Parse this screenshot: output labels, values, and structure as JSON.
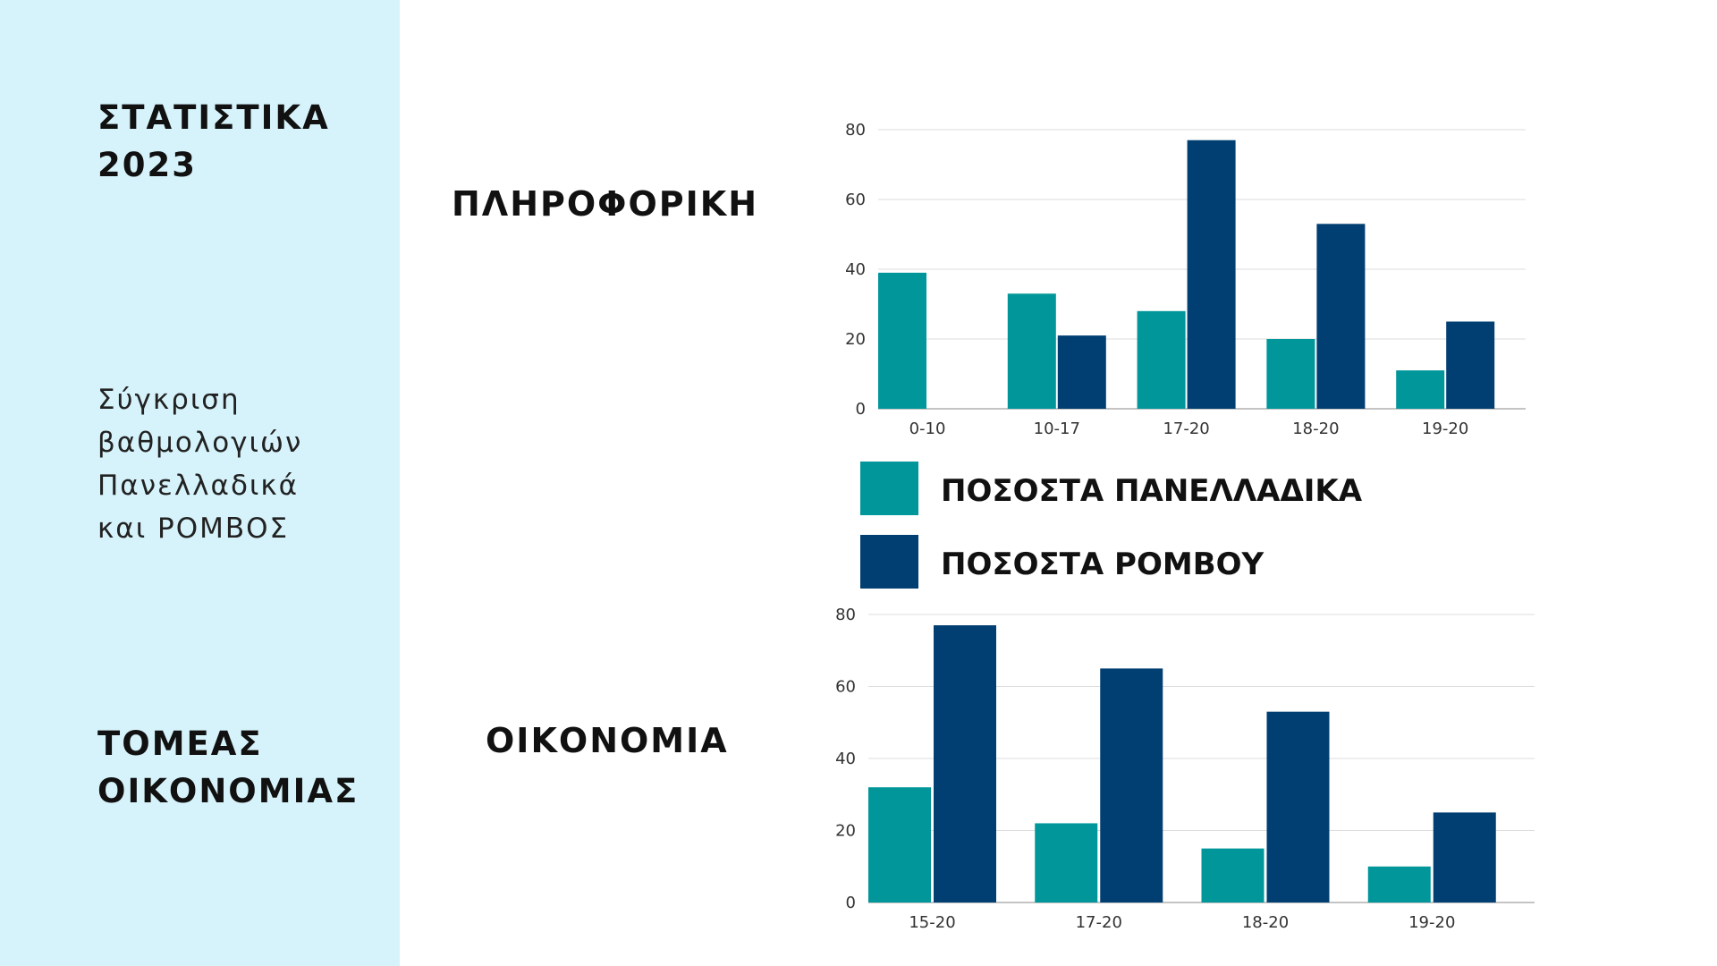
{
  "sidebar": {
    "title_1": "ΣΤΑΤΙΣΤΙΚΑ\n2023",
    "description": "Σύγκριση\nβαθμολογιών\n Πανελλαδικά\nκαι ΡΟΜΒΟΣ",
    "title_2": "ΤΟΜΕΑΣ\nΟΙΚΟΝΟΜΙΑΣ"
  },
  "headings": {
    "chart_1": "ΠΛΗΡΟΦΟΡΙΚΗ",
    "chart_2": "ΟΙΚΟΝΟΜΙΑ"
  },
  "legend": {
    "items": [
      {
        "label": "ΠΟΣΟΣΤΑ ΠΑΝΕΛΛΑΔΙΚΑ",
        "color": "#00969a"
      },
      {
        "label": "ΠΟΣΟΣΤΑ ΡΟΜΒΟΥ",
        "color": "#013f72"
      }
    ]
  },
  "colors": {
    "sidebar_bg": "#d6f3fb",
    "series_1": "#00969a",
    "series_2": "#013f72",
    "grid": "#dddddd"
  },
  "chart_data": [
    {
      "type": "bar",
      "categories": [
        "0-10",
        "10-17",
        "17-20",
        "18-20",
        "19-20"
      ],
      "series": [
        {
          "name": "ΠΟΣΟΣΤΑ ΠΑΝΕΛΛΑΔΙΚΑ",
          "values": [
            39,
            33,
            28,
            20,
            11
          ]
        },
        {
          "name": "ΠΟΣΟΣΤΑ ΡΟΜΒΟΥ",
          "values": [
            0,
            21,
            77,
            53,
            25
          ]
        }
      ],
      "yticks": [
        0,
        20,
        40,
        60,
        80
      ],
      "ylim": [
        0,
        80
      ],
      "grid": true
    },
    {
      "type": "bar",
      "categories": [
        "15-20",
        "17-20",
        "18-20",
        "19-20"
      ],
      "series": [
        {
          "name": "ΠΟΣΟΣΤΑ ΠΑΝΕΛΛΑΔΙΚΑ",
          "values": [
            32,
            22,
            15,
            10
          ]
        },
        {
          "name": "ΠΟΣΟΣΤΑ ΡΟΜΒΟΥ",
          "values": [
            77,
            65,
            53,
            25
          ]
        }
      ],
      "yticks": [
        0,
        20,
        40,
        60,
        80
      ],
      "ylim": [
        0,
        80
      ],
      "grid": true
    }
  ]
}
